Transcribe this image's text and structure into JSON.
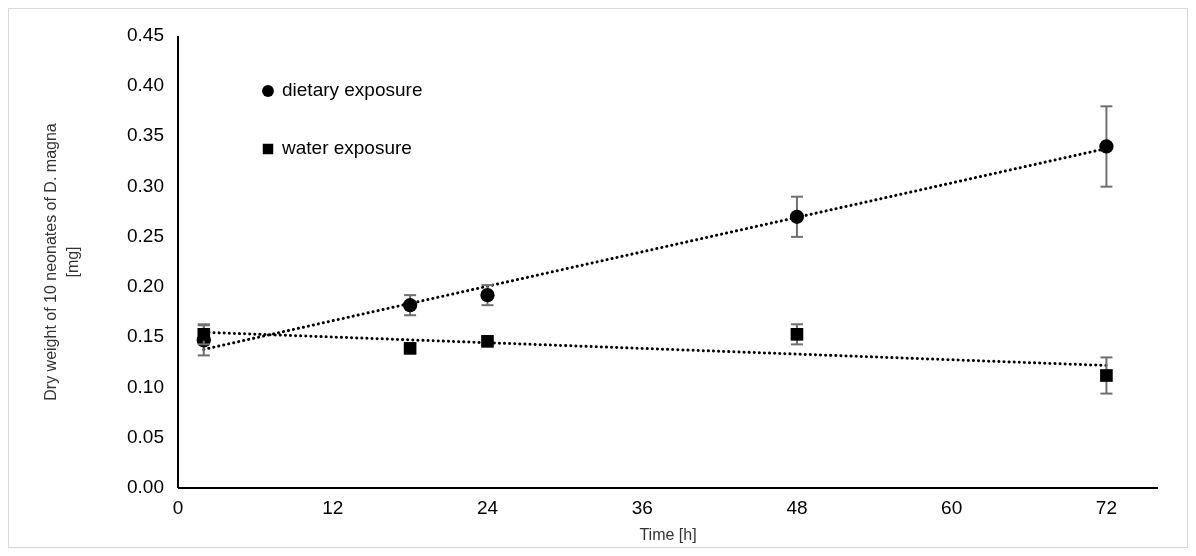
{
  "chart_data": {
    "type": "scatter",
    "xlabel": "Time [h]",
    "ylabel": "Dry weight of 10 neonates of D. magna [mg]",
    "xlim": [
      0,
      76
    ],
    "xticks": [
      0,
      12,
      24,
      36,
      48,
      60,
      72
    ],
    "ylim": [
      0,
      0.45
    ],
    "yticks": [
      {
        "value": 0,
        "label": "0.00"
      },
      {
        "value": 0.05,
        "label": "0.05"
      },
      {
        "value": 0.1,
        "label": "0.10"
      },
      {
        "value": 0.15,
        "label": "0.15"
      },
      {
        "value": 0.2,
        "label": "0.20"
      },
      {
        "value": 0.25,
        "label": "0.25"
      },
      {
        "value": 0.3,
        "label": "0.30"
      },
      {
        "value": 0.35,
        "label": "0.35"
      },
      {
        "value": 0.4,
        "label": "0.40"
      },
      {
        "value": 0.45,
        "label": "0.45"
      }
    ],
    "grid": false,
    "legend": "top left",
    "series": [
      {
        "name": "dietary exposure",
        "marker": "circle",
        "color": "#000000",
        "x": [
          2,
          18,
          24,
          48,
          72
        ],
        "values": [
          0.147,
          0.182,
          0.192,
          0.27,
          0.34
        ],
        "errors": [
          0.015,
          0.01,
          0.01,
          0.02,
          0.04
        ]
      },
      {
        "name": "water exposure",
        "marker": "square",
        "color": "#000000",
        "x": [
          2,
          18,
          24,
          48,
          72
        ],
        "values": [
          0.153,
          0.139,
          0.146,
          0.153,
          0.112
        ],
        "errors": [
          0.01,
          null,
          null,
          0.01,
          0.018
        ]
      },
      {
        "type": "line",
        "line_style": "dotted",
        "color": "#000000",
        "x": [
          2,
          72
        ],
        "values": [
          0.138,
          0.338
        ]
      },
      {
        "type": "line",
        "line_style": "dotted",
        "color": "#000000",
        "x": [
          2,
          72
        ],
        "values": [
          0.155,
          0.122
        ]
      }
    ]
  }
}
